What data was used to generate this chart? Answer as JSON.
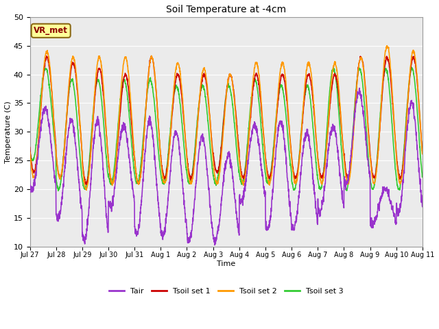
{
  "title": "Soil Temperature at -4cm",
  "xlabel": "Time",
  "ylabel": "Temperature (C)",
  "ylim": [
    10,
    50
  ],
  "n_days": 15,
  "background_color": "#ffffff",
  "plot_bg_color": "#ebebeb",
  "annotation_text": "VR_met",
  "annotation_color": "#8B0000",
  "annotation_bg": "#FFFF99",
  "annotation_border": "#8B6914",
  "colors": {
    "Tair": "#9933CC",
    "Tsoil1": "#CC0000",
    "Tsoil2": "#FF9900",
    "Tsoil3": "#33CC33"
  },
  "legend_labels": [
    "Tair",
    "Tsoil set 1",
    "Tsoil set 2",
    "Tsoil set 3"
  ],
  "tick_labels": [
    "Jul 27",
    "Jul 28",
    "Jul 29",
    "Jul 30",
    "Jul 31",
    "Aug 1",
    "Aug 2",
    "Aug 3",
    "Aug 4",
    "Aug 5",
    "Aug 6",
    "Aug 7",
    "Aug 8",
    "Aug 9",
    "Aug 10",
    "Aug 11"
  ],
  "tair_day_params": [
    {
      "max": 34,
      "min": 20
    },
    {
      "max": 32,
      "min": 15
    },
    {
      "max": 32,
      "min": 11
    },
    {
      "max": 31,
      "min": 17
    },
    {
      "max": 32,
      "min": 12
    },
    {
      "max": 30,
      "min": 12
    },
    {
      "max": 29,
      "min": 11
    },
    {
      "max": 26,
      "min": 11
    },
    {
      "max": 31,
      "min": 18
    },
    {
      "max": 32,
      "min": 13
    },
    {
      "max": 30,
      "min": 13
    },
    {
      "max": 31,
      "min": 16
    },
    {
      "max": 37,
      "min": 21
    },
    {
      "max": 20,
      "min": 14
    },
    {
      "max": 35,
      "min": 16
    }
  ],
  "tsoil1_day_params": [
    {
      "max": 43,
      "min": 23
    },
    {
      "max": 42,
      "min": 22
    },
    {
      "max": 41,
      "min": 21
    },
    {
      "max": 40,
      "min": 21
    },
    {
      "max": 43,
      "min": 21
    },
    {
      "max": 40,
      "min": 22
    },
    {
      "max": 40,
      "min": 22
    },
    {
      "max": 40,
      "min": 23
    },
    {
      "max": 40,
      "min": 22
    },
    {
      "max": 40,
      "min": 22
    },
    {
      "max": 40,
      "min": 22
    },
    {
      "max": 40,
      "min": 22
    },
    {
      "max": 43,
      "min": 22
    },
    {
      "max": 43,
      "min": 22
    },
    {
      "max": 43,
      "min": 22
    }
  ],
  "tsoil2_day_params": [
    {
      "max": 44,
      "min": 22
    },
    {
      "max": 43,
      "min": 22
    },
    {
      "max": 43,
      "min": 20
    },
    {
      "max": 43,
      "min": 21
    },
    {
      "max": 43,
      "min": 21
    },
    {
      "max": 42,
      "min": 21
    },
    {
      "max": 41,
      "min": 21
    },
    {
      "max": 40,
      "min": 21
    },
    {
      "max": 42,
      "min": 21
    },
    {
      "max": 42,
      "min": 21
    },
    {
      "max": 42,
      "min": 21
    },
    {
      "max": 42,
      "min": 21
    },
    {
      "max": 43,
      "min": 21
    },
    {
      "max": 45,
      "min": 21
    },
    {
      "max": 44,
      "min": 21
    }
  ],
  "tsoil3_day_params": [
    {
      "max": 41,
      "min": 25
    },
    {
      "max": 39,
      "min": 20
    },
    {
      "max": 39,
      "min": 20
    },
    {
      "max": 39,
      "min": 21
    },
    {
      "max": 39,
      "min": 21
    },
    {
      "max": 38,
      "min": 21
    },
    {
      "max": 38,
      "min": 21
    },
    {
      "max": 38,
      "min": 21
    },
    {
      "max": 39,
      "min": 21
    },
    {
      "max": 38,
      "min": 21
    },
    {
      "max": 38,
      "min": 20
    },
    {
      "max": 41,
      "min": 20
    },
    {
      "max": 41,
      "min": 20
    },
    {
      "max": 41,
      "min": 20
    },
    {
      "max": 41,
      "min": 20
    }
  ],
  "tair_peak_phase": 0.58,
  "tsoil_peak_phase": 0.65,
  "tsoil3_peak_phase": 0.6
}
